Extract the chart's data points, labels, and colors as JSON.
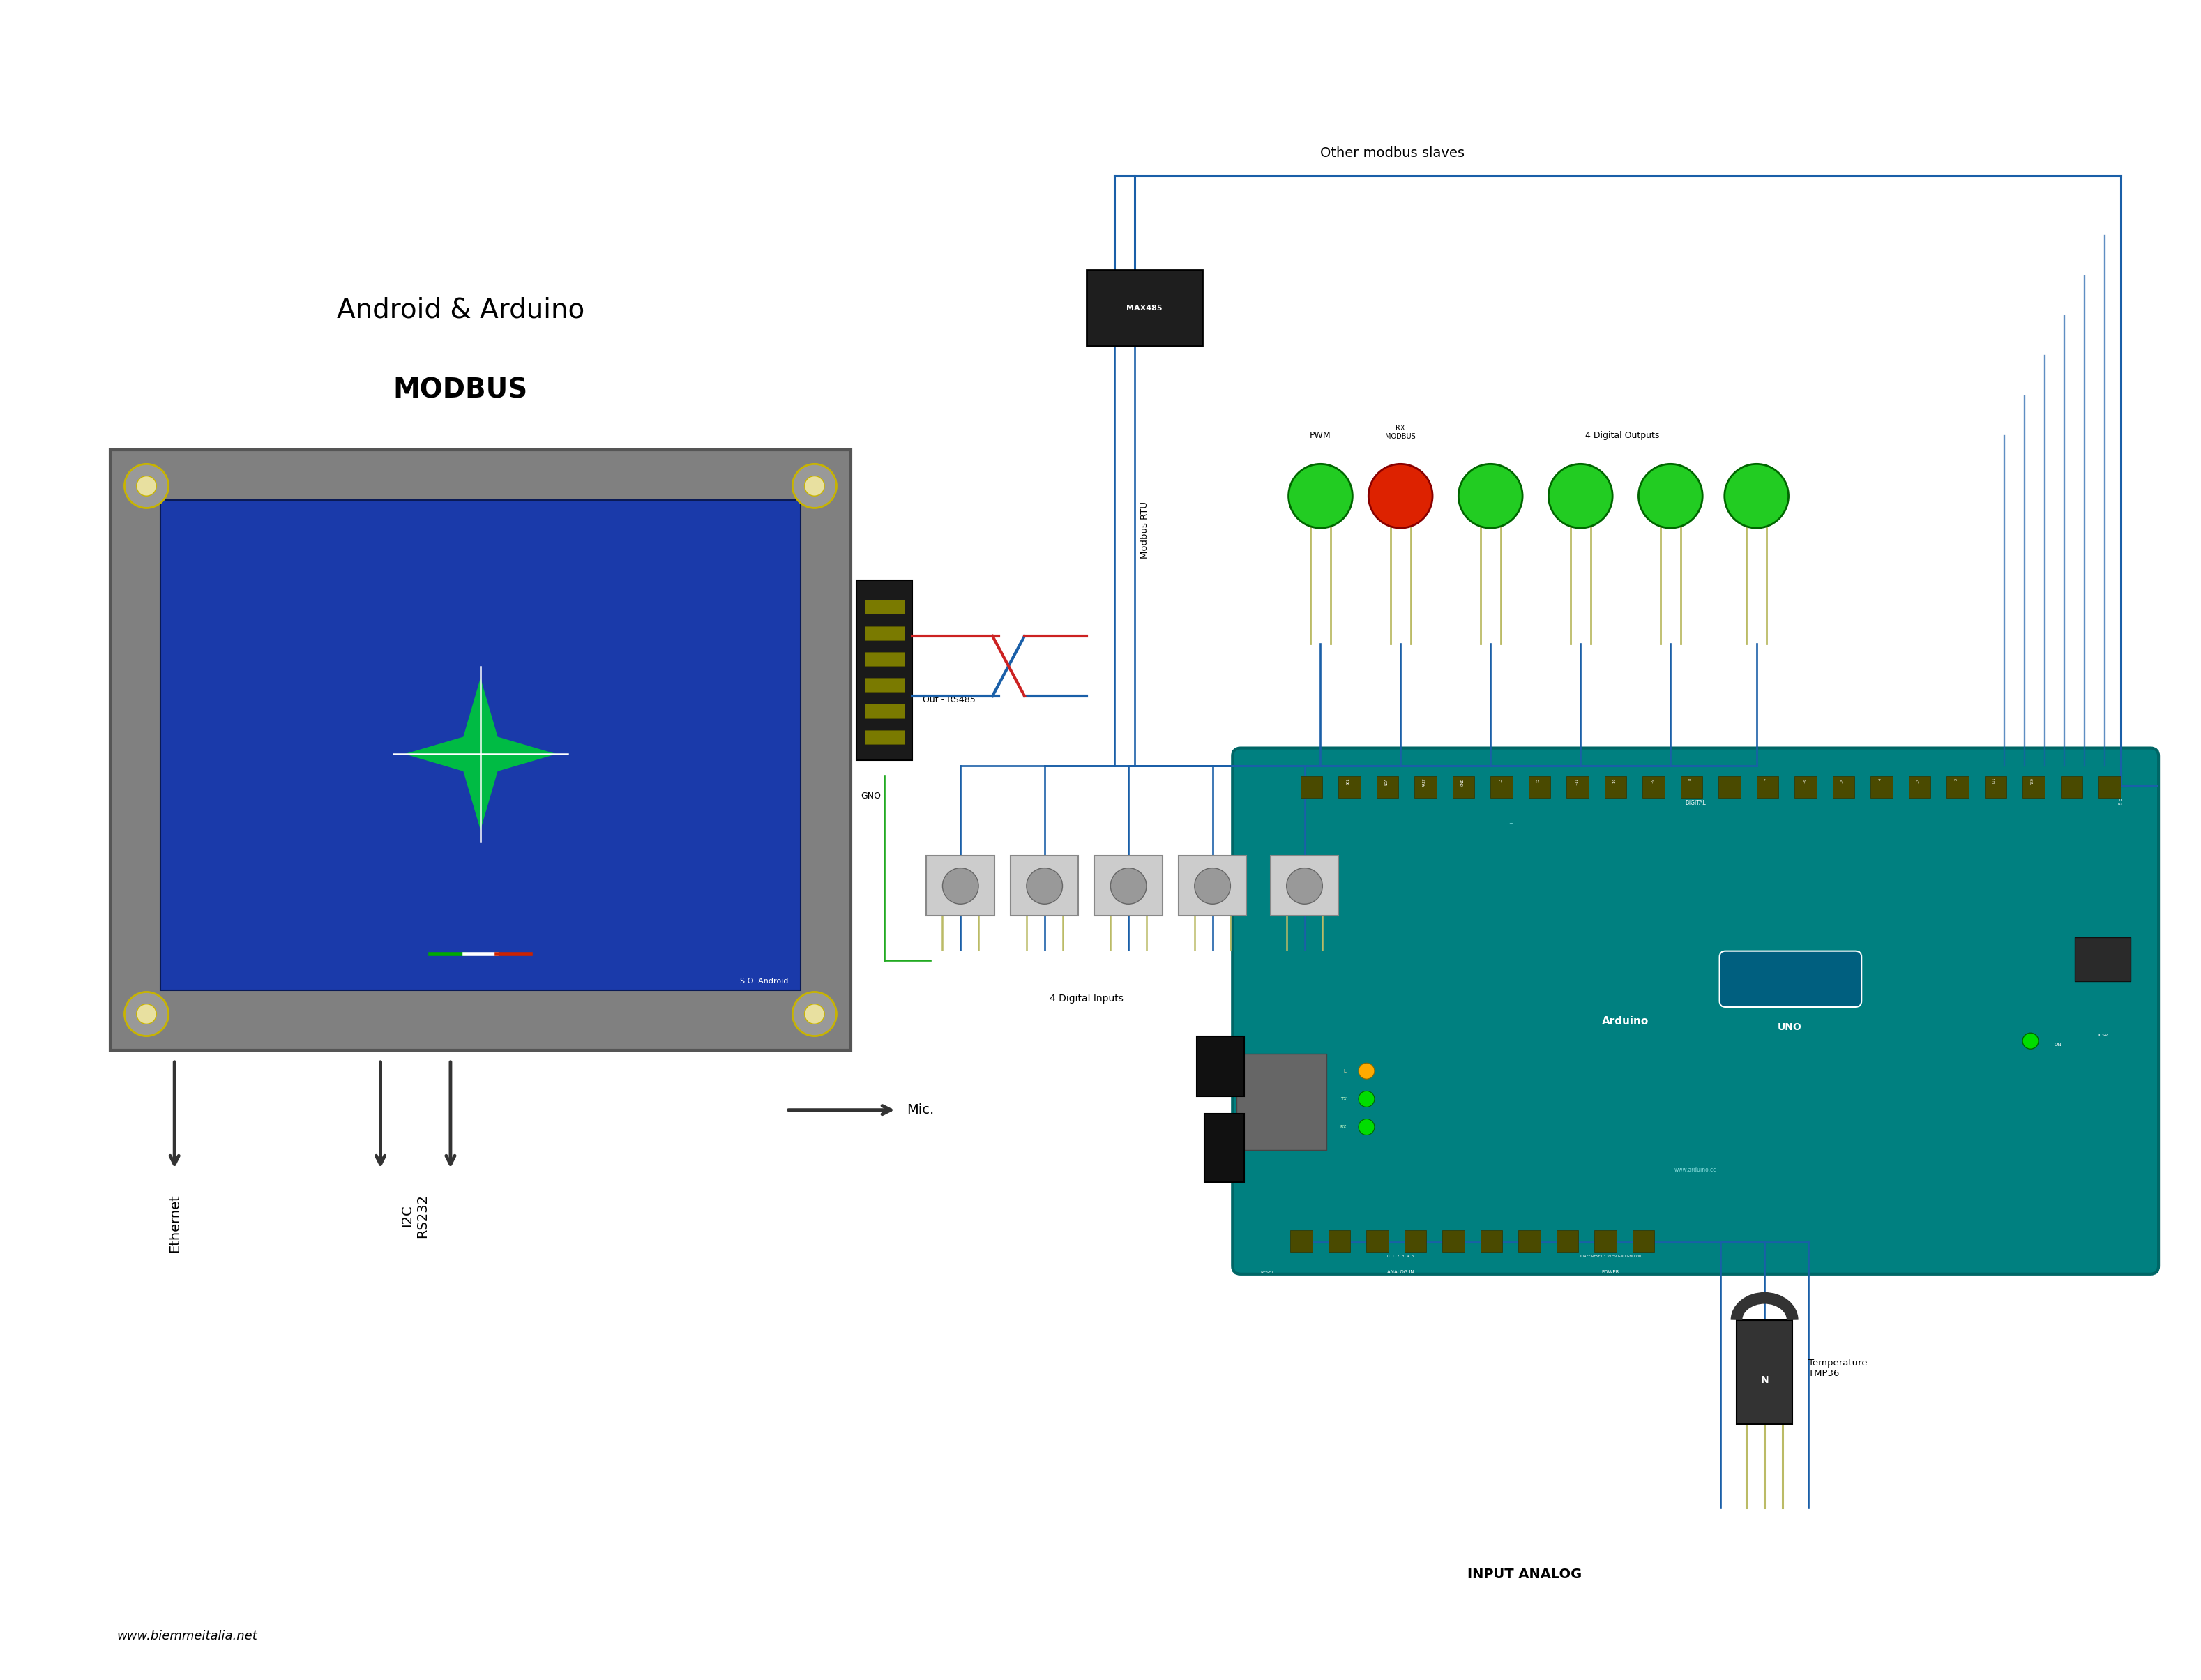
{
  "title_line1": "Android & Arduino",
  "title_line2": "MODBUS",
  "bg_color": "#ffffff",
  "text_color": "#000000",
  "blue_wire": "#1a5fa8",
  "red_wire": "#cc2222",
  "green_wire": "#22aa22",
  "arduino_teal": "#008080",
  "arduino_teal_dark": "#006666",
  "gray_frame": "#808080",
  "gray_frame_edge": "#555555",
  "screen_blue": "#1a3aaa",
  "black": "#111111",
  "footer_text": "www.biemmeitalia.net",
  "label_out_rs485": "Out - RS485",
  "label_gno": "GNO",
  "label_modbus_rtu": "Modbus RTU",
  "label_max485": "MAX485",
  "label_other_modbus": "Other modbus slaves",
  "label_pwm": "PWM",
  "label_rx_modbus": "RX\nMODBUS",
  "label_4_digital_out": "4 Digital Outputs",
  "label_4_digital_in": "4 Digital Inputs",
  "label_input_analog": "INPUT ANALOG",
  "label_temperature": "Temperature\nTMP36",
  "label_so_android": "S.O. Android",
  "label_ethernet": "Ethernet",
  "label_i2c_rs232": "I2C\nRS232",
  "label_mic": "Mic.",
  "label_arduino_uno": "Arduino",
  "label_uno": "UNO",
  "screw_color": "#c8b400",
  "screw_inner": "#e8e0a0",
  "pin_color": "#7a7a00",
  "led_green": "#22cc22",
  "led_red": "#dd2200",
  "led_leg": "#bbbb66",
  "btn_face": "#cccccc",
  "btn_circle": "#999999",
  "tmp36_body": "#333333"
}
